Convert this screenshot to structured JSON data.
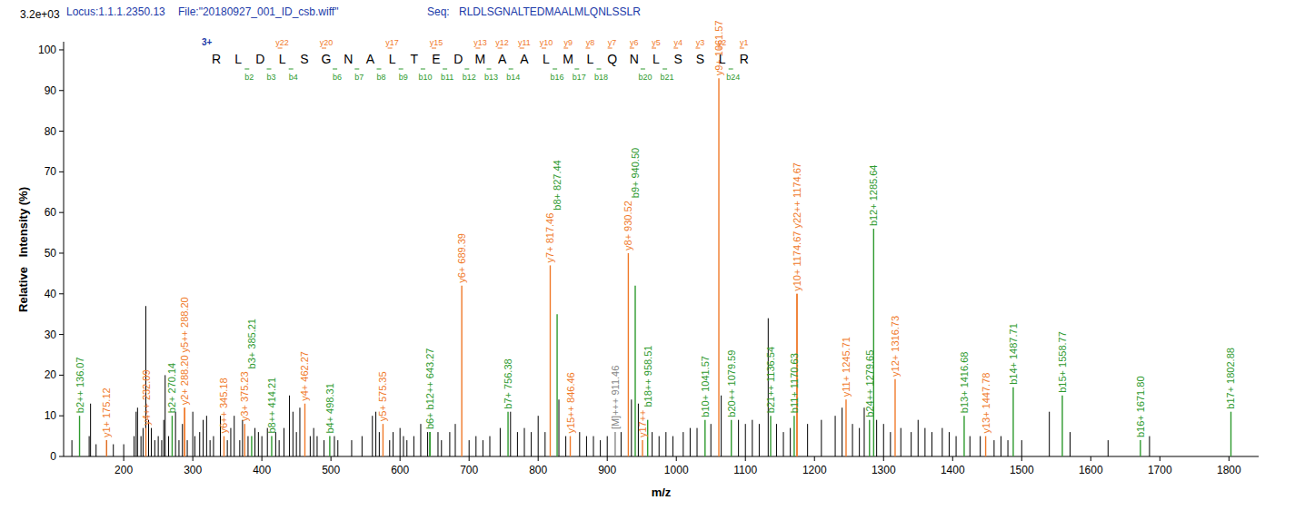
{
  "header": {
    "locus": "Locus:1.1.1.2350.13",
    "file": "File:\"20180927_001_ID_csb.wiff\"",
    "seq_label": "Seq:",
    "sequence": "RLDLSGNALTEDMAALMLQNLSSLR"
  },
  "chart_data": {
    "type": "spectrum",
    "intensity_max": "3.2e+03",
    "xlabel": "m/z",
    "ylabel": "Relative   Intensity (%)",
    "xlim": [
      113,
      1843
    ],
    "ylim": [
      0,
      102
    ],
    "xticks": [
      200,
      300,
      400,
      500,
      600,
      700,
      800,
      900,
      1000,
      1100,
      1200,
      1300,
      1400,
      1500,
      1600,
      1700,
      1800
    ],
    "yticks": [
      0,
      10,
      20,
      30,
      40,
      50,
      60,
      70,
      80,
      90,
      100
    ],
    "charge": "3+",
    "residues": [
      "R",
      "L",
      "D",
      "L",
      "S",
      "G",
      "N",
      "A",
      "L",
      "T",
      "E",
      "D",
      "M",
      "A",
      "A",
      "L",
      "M",
      "L",
      "Q",
      "N",
      "L",
      "S",
      "S",
      "L",
      "R"
    ],
    "y_ions": [
      "y22",
      "y20",
      "y17",
      "y15",
      "y13",
      "y12",
      "y11",
      "y10",
      "y9",
      "y8",
      "y7",
      "y6",
      "y5",
      "y4",
      "y3",
      "y2",
      "y1"
    ],
    "b_ions": [
      "b2",
      "b3",
      "b4",
      "b6",
      "b7",
      "b8",
      "b9",
      "b10",
      "b11",
      "b12",
      "b13",
      "b14",
      "b16",
      "b17",
      "b18",
      "b20",
      "b21",
      "b24"
    ],
    "y_color": "#f07a2a",
    "b_color": "#2e9a2e",
    "seq_color": "#1c3aa8",
    "peaks": {
      "color": "#000000",
      "x": [
        125,
        150,
        152,
        160,
        175.5,
        185,
        200,
        215,
        218,
        220,
        225,
        228,
        232,
        236,
        240,
        245,
        250,
        255,
        258,
        260,
        265,
        275,
        280,
        285,
        292,
        300,
        303,
        310,
        315,
        320,
        325,
        330,
        340,
        350,
        355,
        360,
        368,
        372,
        380,
        390,
        395,
        400,
        408,
        420,
        425,
        432,
        440,
        445,
        450,
        455,
        470,
        475,
        480,
        490,
        505,
        510,
        530,
        545,
        560,
        565,
        570,
        585,
        590,
        600,
        605,
        610,
        620,
        630,
        640,
        655,
        660,
        672,
        680,
        700,
        710,
        720,
        730,
        745,
        760,
        770,
        780,
        790,
        800,
        810,
        830,
        840,
        860,
        870,
        880,
        890,
        900,
        920,
        935,
        945,
        965,
        975,
        985,
        995,
        1010,
        1020,
        1030,
        1050,
        1065,
        1090,
        1100,
        1110,
        1120,
        1133,
        1145,
        1155,
        1165,
        1190,
        1210,
        1230,
        1240,
        1255,
        1265,
        1272,
        1290,
        1300,
        1310,
        1325,
        1340,
        1350,
        1360,
        1370,
        1385,
        1395,
        1405,
        1425,
        1440,
        1460,
        1470,
        1480,
        1500,
        1540,
        1570,
        1625,
        1685
      ],
      "values": [
        4,
        5,
        13,
        3,
        4,
        3,
        3,
        5,
        11,
        12,
        5,
        7,
        37,
        9,
        7,
        4,
        5,
        4,
        9,
        20,
        5,
        11,
        4,
        8,
        4,
        11,
        5,
        6,
        9,
        10,
        4,
        5,
        10,
        4,
        7,
        10,
        4,
        9,
        5,
        7,
        6,
        5,
        7,
        6,
        4,
        7,
        15,
        11,
        6,
        12,
        5,
        7,
        5,
        4,
        5,
        4,
        4,
        5,
        10,
        11,
        6,
        4,
        6,
        7,
        5,
        4,
        5,
        8,
        6,
        6,
        4,
        6,
        8,
        4,
        5,
        4,
        5,
        7,
        11,
        6,
        7,
        6,
        10,
        6,
        14,
        5,
        6,
        5,
        5,
        4,
        5,
        6,
        14,
        13,
        6,
        5,
        6,
        5,
        6,
        7,
        7,
        8,
        15,
        9,
        8,
        9,
        8,
        34,
        8,
        6,
        7,
        8,
        9,
        10,
        12,
        8,
        7,
        12,
        9,
        8,
        6,
        7,
        6,
        9,
        7,
        6,
        7,
        6,
        5,
        5,
        5,
        4,
        5,
        4,
        4,
        11,
        6,
        4,
        5
      ]
    },
    "annotations": [
      {
        "label": "b2++ 136.07",
        "x": 136.07,
        "value": 10,
        "color": "#2e9a2e"
      },
      {
        "label": "y1+ 175.12",
        "x": 175.12,
        "value": 4,
        "color": "#f07a2a"
      },
      {
        "label": "y4++ 232.09",
        "x": 232.09,
        "value": 7,
        "color": "#f07a2a"
      },
      {
        "label": "b2+ 270.14",
        "x": 270.14,
        "value": 10,
        "color": "#2e9a2e"
      },
      {
        "label": "y2+ 288.20",
        "x": 288.2,
        "value": 12,
        "color": "#f07a2a"
      },
      {
        "label": "y5++ 288.20",
        "x": 288.2,
        "value": 12,
        "color": "#f07a2a"
      },
      {
        "label": "y6++ 345.18",
        "x": 345.18,
        "value": 5,
        "color": "#f07a2a"
      },
      {
        "label": "y3+ 375.23",
        "x": 375.23,
        "value": 8,
        "color": "#f07a2a"
      },
      {
        "label": "b3+ 385.21",
        "x": 385.21,
        "value": 5,
        "color": "#2e9a2e"
      },
      {
        "label": "b8++ 414.21",
        "x": 414.21,
        "value": 5,
        "color": "#2e9a2e"
      },
      {
        "label": "y4+ 462.27",
        "x": 462.27,
        "value": 13,
        "color": "#f07a2a"
      },
      {
        "label": "b4+ 498.31",
        "x": 498.31,
        "value": 5,
        "color": "#2e9a2e"
      },
      {
        "label": "y5+ 575.35",
        "x": 575.35,
        "value": 8,
        "color": "#f07a2a"
      },
      {
        "label": "b6+",
        "x": 643.27,
        "value": 6,
        "color": "#2e9a2e"
      },
      {
        "label": "b12++ 643.27",
        "x": 643.27,
        "value": 6,
        "color": "#2e9a2e"
      },
      {
        "label": "y6+ 689.39",
        "x": 689.39,
        "value": 42,
        "color": "#f07a2a"
      },
      {
        "label": "b7+ 756.38",
        "x": 756.38,
        "value": 11,
        "color": "#2e9a2e"
      },
      {
        "label": "y7+ 817.46",
        "x": 817.46,
        "value": 47,
        "color": "#f07a2a"
      },
      {
        "label": "b8+ 827.44",
        "x": 827.44,
        "value": 35,
        "color": "#2e9a2e"
      },
      {
        "label": "y15++ 846.46",
        "x": 846.46,
        "value": 5,
        "color": "#f07a2a"
      },
      {
        "label": "[M]+++ 911.46",
        "x": 911.46,
        "value": 6,
        "color": "#888888"
      },
      {
        "label": "y8+ 930.52",
        "x": 930.52,
        "value": 50,
        "color": "#f07a2a"
      },
      {
        "label": "b9+ 940.50",
        "x": 940.5,
        "value": 42,
        "color": "#2e9a2e"
      },
      {
        "label": "y17++",
        "x": 951,
        "value": 4,
        "color": "#f07a2a"
      },
      {
        "label": "b18++ 958.51",
        "x": 958.51,
        "value": 9,
        "color": "#2e9a2e"
      },
      {
        "label": "b10+ 1041.57",
        "x": 1041.57,
        "value": 9,
        "color": "#2e9a2e"
      },
      {
        "label": "y9+ 1061.57",
        "x": 1061.57,
        "value": 93,
        "color": "#f07a2a"
      },
      {
        "label": "b20++ 1079.59",
        "x": 1079.59,
        "value": 9,
        "color": "#2e9a2e"
      },
      {
        "label": "b21++ 1136.54",
        "x": 1136.54,
        "value": 10,
        "color": "#2e9a2e"
      },
      {
        "label": "b11+ 1170.63",
        "x": 1170.63,
        "value": 10,
        "color": "#2e9a2e"
      },
      {
        "label": "y10+ 1174.67",
        "x": 1174.67,
        "value": 40,
        "color": "#f07a2a"
      },
      {
        "label": "y22++ 1174.67",
        "x": 1174.67,
        "value": 40,
        "color": "#f07a2a"
      },
      {
        "label": "y11+ 1245.71",
        "x": 1245.71,
        "value": 14,
        "color": "#f07a2a"
      },
      {
        "label": "b24++ 1279.65",
        "x": 1279.65,
        "value": 9,
        "color": "#2e9a2e"
      },
      {
        "label": "b12+ 1285.64",
        "x": 1285.64,
        "value": 56,
        "color": "#2e9a2e"
      },
      {
        "label": "y12+ 1316.73",
        "x": 1316.73,
        "value": 19,
        "color": "#f07a2a"
      },
      {
        "label": "b13+ 1416.68",
        "x": 1416.68,
        "value": 10,
        "color": "#2e9a2e"
      },
      {
        "label": "y13+ 1447.78",
        "x": 1447.78,
        "value": 5,
        "color": "#f07a2a"
      },
      {
        "label": "b14+ 1487.71",
        "x": 1487.71,
        "value": 17,
        "color": "#2e9a2e"
      },
      {
        "label": "b15+ 1558.77",
        "x": 1558.77,
        "value": 15,
        "color": "#2e9a2e"
      },
      {
        "label": "b16+ 1671.80",
        "x": 1671.8,
        "value": 4,
        "color": "#2e9a2e"
      },
      {
        "label": "b17+ 1802.88",
        "x": 1802.88,
        "value": 11,
        "color": "#2e9a2e"
      }
    ]
  }
}
